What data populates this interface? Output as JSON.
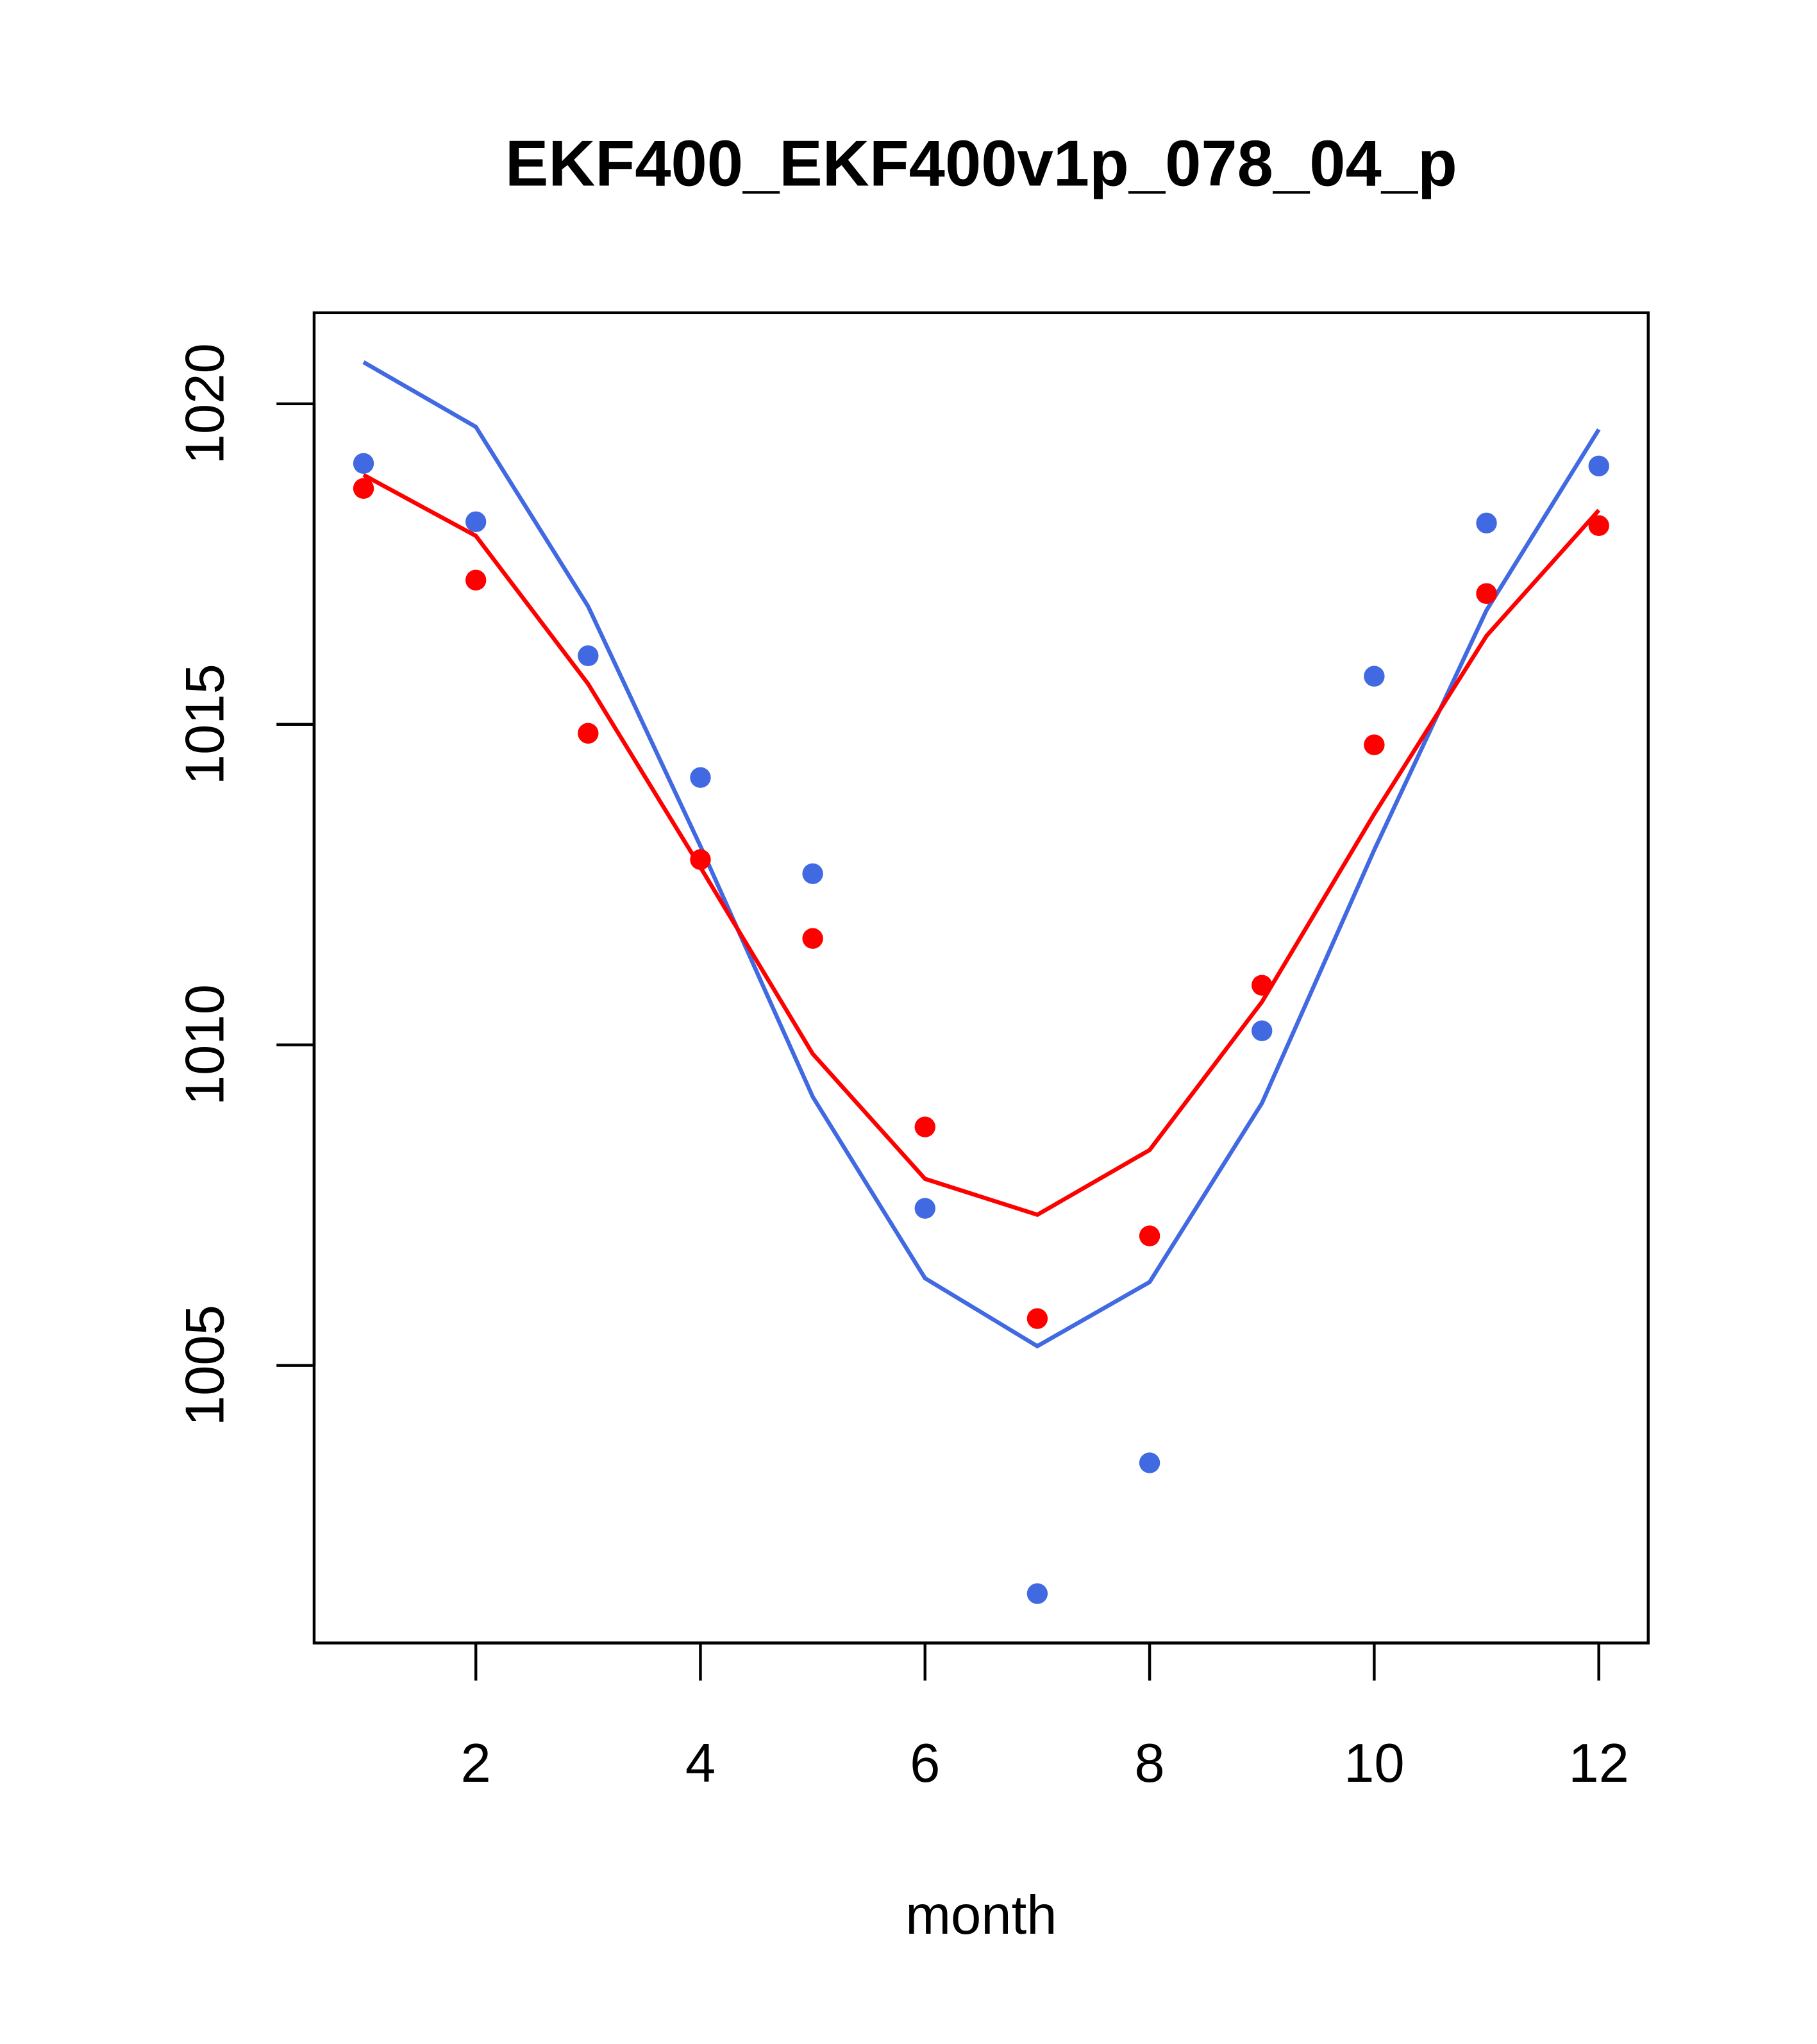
{
  "chart_data": {
    "type": "line",
    "title": "EKF400_EKF400v1p_078_04_p",
    "xlabel": "month",
    "ylabel": "",
    "xlim": [
      0.56,
      12.44
    ],
    "ylim": [
      1000.67,
      1021.42
    ],
    "x_ticks": [
      2,
      4,
      6,
      8,
      10,
      12
    ],
    "x_tick_labels": [
      "2",
      "4",
      "6",
      "8",
      "10",
      "12"
    ],
    "y_ticks": [
      1005,
      1010,
      1015,
      1020
    ],
    "y_tick_labels": [
      "1005",
      "1010",
      "1015",
      "1020"
    ],
    "grid": false,
    "x": [
      1,
      2,
      3,
      4,
      5,
      6,
      7,
      8,
      9,
      10,
      11,
      12
    ],
    "series": [
      {
        "name": "blue points",
        "kind": "points",
        "color": "#4169E1",
        "values": [
          1019.07,
          1018.16,
          1016.07,
          1014.17,
          1012.67,
          1007.45,
          1001.44,
          1003.48,
          1010.22,
          1015.75,
          1018.14,
          1019.03
        ]
      },
      {
        "name": "red points",
        "kind": "points",
        "color": "#FF0000",
        "values": [
          1018.68,
          1017.25,
          1014.86,
          1012.89,
          1011.66,
          1008.72,
          1005.73,
          1007.02,
          1010.93,
          1014.68,
          1017.04,
          1018.1
        ]
      },
      {
        "name": "blue line",
        "kind": "line",
        "color": "#4169E1",
        "values": [
          1020.65,
          1019.64,
          1016.84,
          1013.1,
          1009.19,
          1006.36,
          1005.3,
          1006.3,
          1009.09,
          1013.04,
          1016.78,
          1019.6
        ]
      },
      {
        "name": "red line",
        "kind": "line",
        "color": "#FF0000",
        "values": [
          1018.89,
          1017.94,
          1015.63,
          1012.77,
          1009.86,
          1007.91,
          1007.35,
          1008.36,
          1010.67,
          1013.6,
          1016.38,
          1018.34
        ]
      }
    ]
  }
}
